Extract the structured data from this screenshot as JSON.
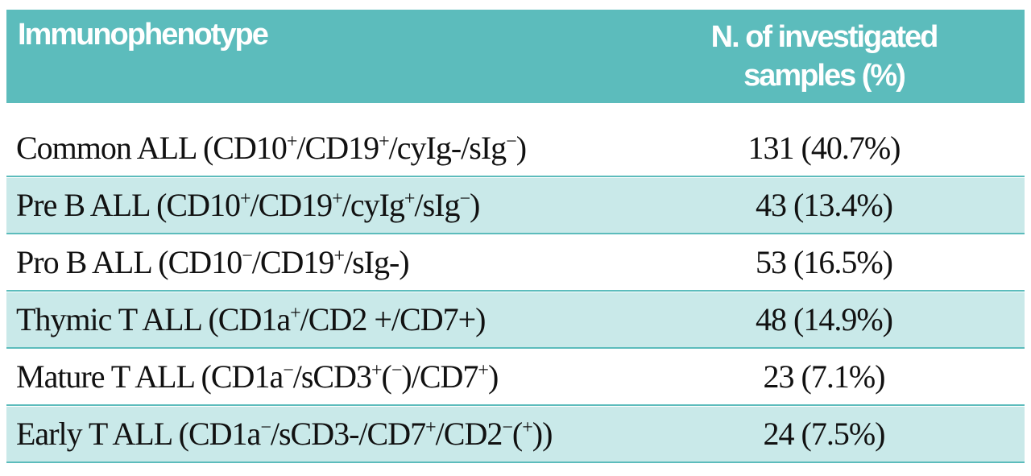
{
  "table": {
    "header": [
      "Immunophenotype",
      "N. of investigated samples (%)"
    ],
    "rows": [
      {
        "label": [
          {
            "t": "Common ALL (CD10"
          },
          {
            "t": "+",
            "sup": true
          },
          {
            "t": "/CD19"
          },
          {
            "t": "+",
            "sup": true
          },
          {
            "t": "/cyIg-/sIg"
          },
          {
            "t": "−",
            "sup": true
          },
          {
            "t": ")"
          }
        ],
        "value": "131 (40.7%)"
      },
      {
        "label": [
          {
            "t": "Pre B ALL (CD10"
          },
          {
            "t": "+",
            "sup": true
          },
          {
            "t": "/CD19"
          },
          {
            "t": "+",
            "sup": true
          },
          {
            "t": "/cyIg"
          },
          {
            "t": "+",
            "sup": true
          },
          {
            "t": "/sIg"
          },
          {
            "t": "−",
            "sup": true
          },
          {
            "t": ")"
          }
        ],
        "value": "43 (13.4%)"
      },
      {
        "label": [
          {
            "t": "Pro B ALL (CD10"
          },
          {
            "t": "−",
            "sup": true
          },
          {
            "t": "/CD19"
          },
          {
            "t": "+",
            "sup": true
          },
          {
            "t": "/sIg-)"
          }
        ],
        "value": "53 (16.5%)"
      },
      {
        "label": [
          {
            "t": "Thymic T ALL (CD1a"
          },
          {
            "t": "+",
            "sup": true
          },
          {
            "t": "/CD2 +/CD7+)"
          }
        ],
        "value": "48 (14.9%)"
      },
      {
        "label": [
          {
            "t": "Mature T ALL (CD1a"
          },
          {
            "t": "−",
            "sup": true
          },
          {
            "t": "/sCD3"
          },
          {
            "t": "+",
            "sup": true
          },
          {
            "t": "("
          },
          {
            "t": "−",
            "sup": true
          },
          {
            "t": ")/CD7"
          },
          {
            "t": "+",
            "sup": true
          },
          {
            "t": ")"
          }
        ],
        "value": "23 (7.1%)"
      },
      {
        "label": [
          {
            "t": "Early T ALL (CD1a"
          },
          {
            "t": "−",
            "sup": true
          },
          {
            "t": "/sCD3-/CD7"
          },
          {
            "t": "+",
            "sup": true
          },
          {
            "t": "/CD2"
          },
          {
            "t": "−",
            "sup": true
          },
          {
            "t": "("
          },
          {
            "t": "+",
            "sup": true
          },
          {
            "t": "))"
          }
        ],
        "value": "24 (7.5%)"
      }
    ]
  }
}
